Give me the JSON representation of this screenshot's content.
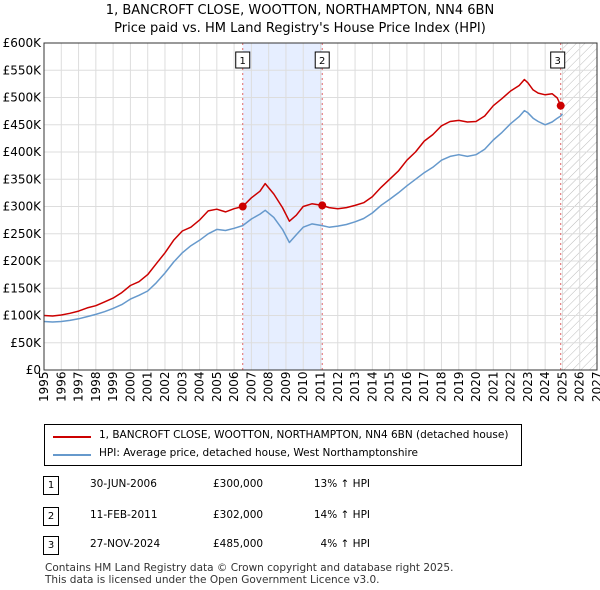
{
  "title_line1": "1, BANCROFT CLOSE, WOOTTON, NORTHAMPTON, NN4 6BN",
  "title_line2": "Price paid vs. HM Land Registry's House Price Index (HPI)",
  "colors": {
    "property": "#cc0000",
    "hpi": "#6699cc",
    "shade": "#e6eeff",
    "grid": "#dddddd",
    "vline": "#e06666"
  },
  "legend": {
    "property_label": "1, BANCROFT CLOSE, WOOTTON, NORTHAMPTON, NN4 6BN (detached house)",
    "hpi_label": "HPI: Average price, detached house, West Northamptonshire"
  },
  "transactions": [
    {
      "num": "1",
      "date": "30-JUN-2006",
      "price": "£300,000",
      "hpi": "13% ↑ HPI"
    },
    {
      "num": "2",
      "date": "11-FEB-2011",
      "price": "£302,000",
      "hpi": "14% ↑ HPI"
    },
    {
      "num": "3",
      "date": "27-NOV-2024",
      "price": "£485,000",
      "hpi": "4% ↑ HPI"
    }
  ],
  "footer_line1": "Contains HM Land Registry data © Crown copyright and database right 2025.",
  "footer_line2": "This data is licensed under the Open Government Licence v3.0.",
  "chart_data": {
    "type": "line",
    "title": "1, BANCROFT CLOSE, WOOTTON, NORTHAMPTON, NN4 6BN",
    "subtitle": "Price paid vs. HM Land Registry's House Price Index (HPI)",
    "xlabel": "",
    "ylabel": "",
    "xlim": [
      1995,
      2027
    ],
    "ylim": [
      0,
      600000
    ],
    "x_ticks": [
      "1995",
      "1996",
      "1997",
      "1998",
      "1999",
      "2000",
      "2001",
      "2002",
      "2003",
      "2004",
      "2005",
      "2006",
      "2007",
      "2008",
      "2009",
      "2010",
      "2011",
      "2012",
      "2013",
      "2014",
      "2015",
      "2016",
      "2017",
      "2018",
      "2019",
      "2020",
      "2021",
      "2022",
      "2023",
      "2024",
      "2025",
      "2026",
      "2027"
    ],
    "y_ticks": [
      {
        "value": 0,
        "label": "£0"
      },
      {
        "value": 50000,
        "label": "£50K"
      },
      {
        "value": 100000,
        "label": "£100K"
      },
      {
        "value": 150000,
        "label": "£150K"
      },
      {
        "value": 200000,
        "label": "£200K"
      },
      {
        "value": 250000,
        "label": "£250K"
      },
      {
        "value": 300000,
        "label": "£300K"
      },
      {
        "value": 350000,
        "label": "£350K"
      },
      {
        "value": 400000,
        "label": "£400K"
      },
      {
        "value": 450000,
        "label": "£450K"
      },
      {
        "value": 500000,
        "label": "£500K"
      },
      {
        "value": 550000,
        "label": "£550K"
      },
      {
        "value": 600000,
        "label": "£600K"
      }
    ],
    "shaded_period": [
      2006.5,
      2011.1
    ],
    "future_hatch_from": 2025.0,
    "series": [
      {
        "name": "1, BANCROFT CLOSE, WOOTTON, NORTHAMPTON, NN4 6BN (detached house)",
        "x": [
          1995,
          1995.5,
          1996,
          1996.5,
          1997,
          1997.5,
          1998,
          1998.5,
          1999,
          1999.5,
          2000,
          2000.5,
          2001,
          2001.5,
          2002,
          2002.5,
          2003,
          2003.5,
          2004,
          2004.5,
          2005,
          2005.5,
          2006,
          2006.5,
          2007,
          2007.5,
          2007.8,
          2008.3,
          2008.8,
          2009.2,
          2009.6,
          2010,
          2010.5,
          2011.1,
          2011.5,
          2012,
          2012.5,
          2013,
          2013.5,
          2014,
          2014.5,
          2015,
          2015.5,
          2016,
          2016.5,
          2017,
          2017.5,
          2018,
          2018.5,
          2019,
          2019.5,
          2020,
          2020.5,
          2021,
          2021.5,
          2022,
          2022.5,
          2022.8,
          2023,
          2023.3,
          2023.6,
          2024,
          2024.4,
          2024.7,
          2024.9
        ],
        "values": [
          100000,
          99000,
          101000,
          104000,
          108000,
          114000,
          118000,
          125000,
          132000,
          142000,
          155000,
          162000,
          175000,
          195000,
          215000,
          238000,
          255000,
          262000,
          275000,
          292000,
          295000,
          290000,
          296000,
          300000,
          316000,
          328000,
          342000,
          323000,
          298000,
          273000,
          284000,
          300000,
          305000,
          302000,
          298000,
          296000,
          298000,
          302000,
          307000,
          318000,
          335000,
          350000,
          365000,
          385000,
          400000,
          420000,
          432000,
          448000,
          456000,
          458000,
          455000,
          456000,
          466000,
          485000,
          498000,
          512000,
          522000,
          533000,
          527000,
          514000,
          508000,
          505000,
          507000,
          499000,
          485000
        ]
      },
      {
        "name": "HPI: Average price, detached house, West Northamptonshire",
        "x": [
          1995,
          1995.5,
          1996,
          1996.5,
          1997,
          1997.5,
          1998,
          1998.5,
          1999,
          1999.5,
          2000,
          2000.5,
          2001,
          2001.5,
          2002,
          2002.5,
          2003,
          2003.5,
          2004,
          2004.5,
          2005,
          2005.5,
          2006,
          2006.5,
          2007,
          2007.5,
          2007.8,
          2008.3,
          2008.8,
          2009.2,
          2009.6,
          2010,
          2010.5,
          2011.1,
          2011.5,
          2012,
          2012.5,
          2013,
          2013.5,
          2014,
          2014.5,
          2015,
          2015.5,
          2016,
          2016.5,
          2017,
          2017.5,
          2018,
          2018.5,
          2019,
          2019.5,
          2020,
          2020.5,
          2021,
          2021.5,
          2022,
          2022.5,
          2022.8,
          2023,
          2023.3,
          2023.6,
          2024,
          2024.4,
          2024.7,
          2024.9,
          2025
        ],
        "values": [
          89000,
          88000,
          89000,
          91000,
          94000,
          98000,
          102000,
          107000,
          113000,
          120000,
          130000,
          137000,
          145000,
          160000,
          178000,
          198000,
          215000,
          228000,
          238000,
          250000,
          258000,
          256000,
          260000,
          265000,
          277000,
          286000,
          293000,
          280000,
          258000,
          234000,
          248000,
          262000,
          268000,
          265000,
          262000,
          264000,
          267000,
          272000,
          278000,
          288000,
          302000,
          313000,
          325000,
          338000,
          350000,
          362000,
          372000,
          385000,
          392000,
          395000,
          392000,
          395000,
          405000,
          422000,
          436000,
          452000,
          465000,
          476000,
          472000,
          462000,
          456000,
          450000,
          455000,
          462000,
          466000,
          470000
        ]
      }
    ],
    "sale_points": [
      {
        "label": "1",
        "x": 2006.5,
        "value": 300000
      },
      {
        "label": "2",
        "x": 2011.1,
        "value": 302000
      },
      {
        "label": "3",
        "x": 2024.9,
        "value": 485000
      }
    ]
  }
}
